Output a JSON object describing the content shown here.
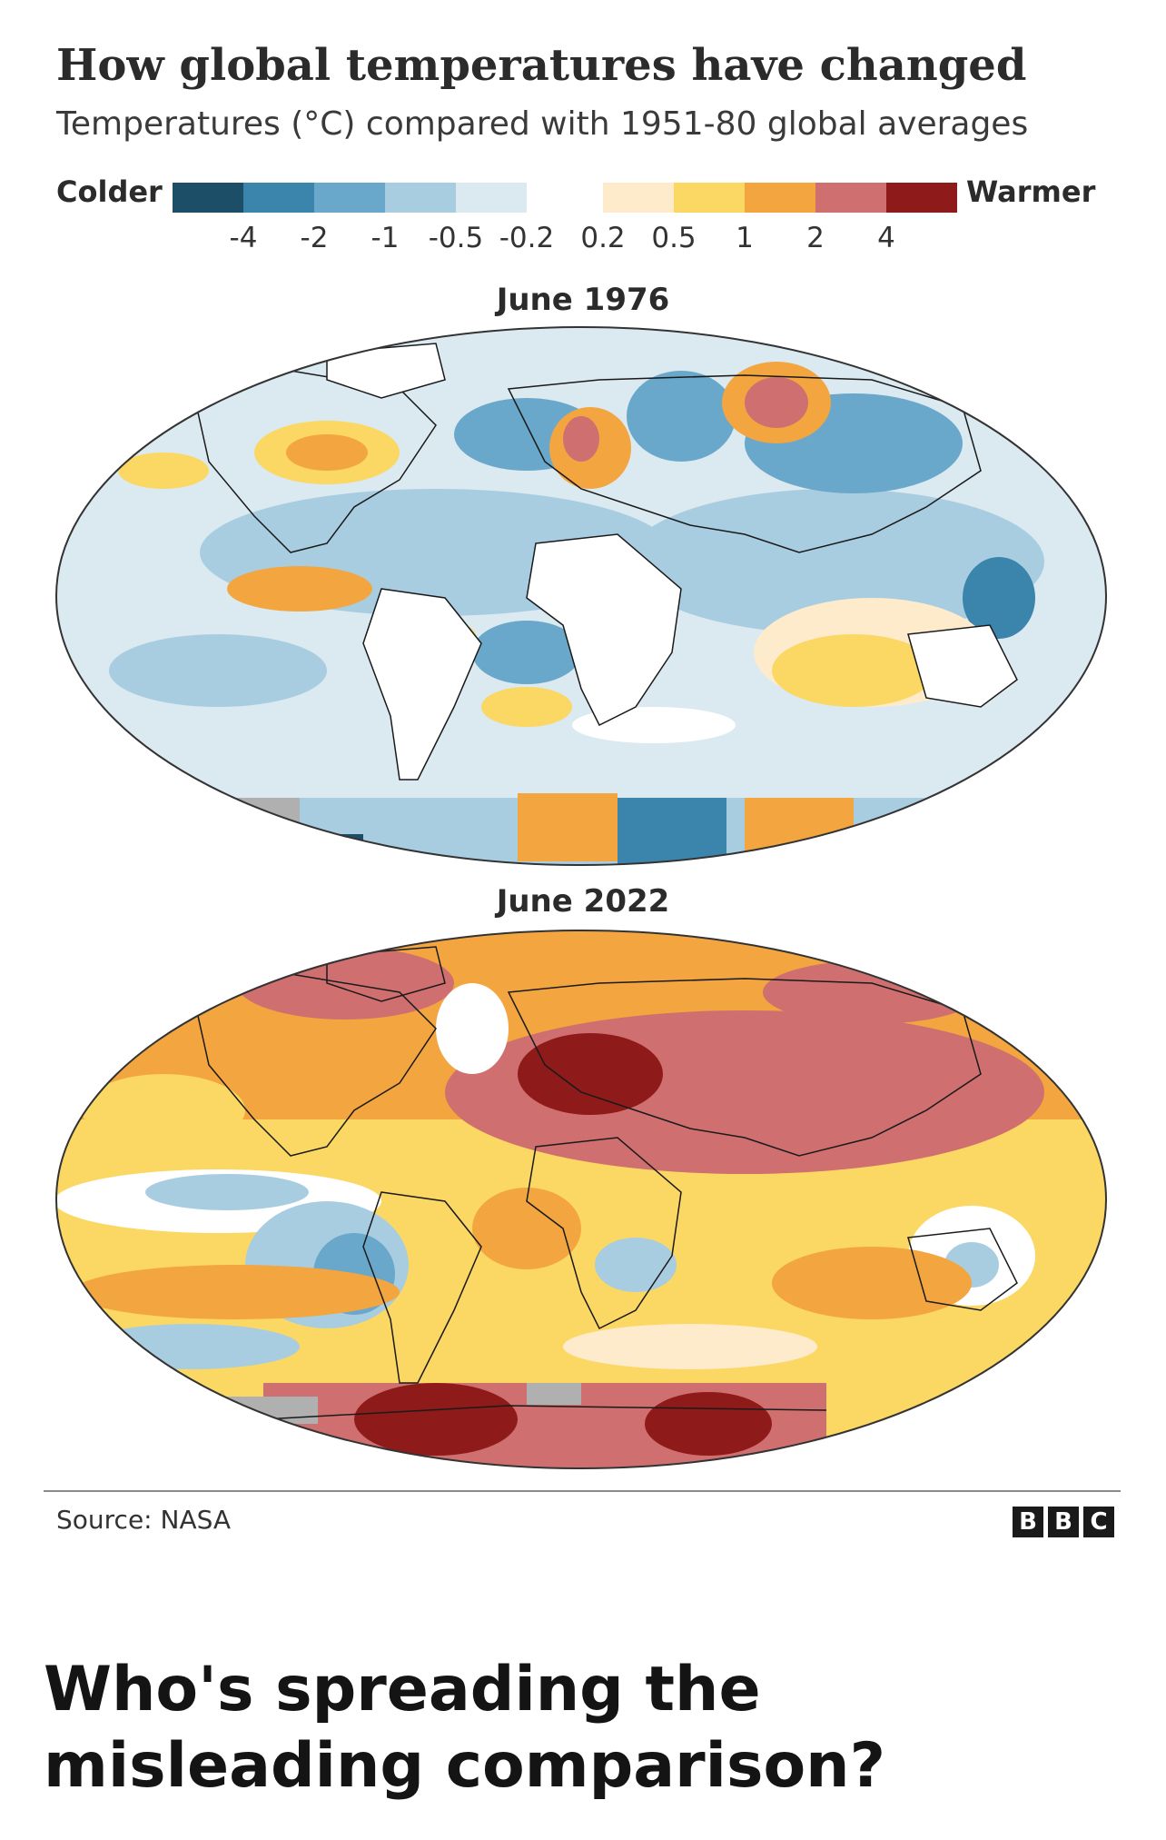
{
  "title": "How global temperatures have changed",
  "subtitle": "Temperatures (°C) compared with 1951-80 global averages",
  "legend": {
    "left_label": "Colder",
    "right_label": "Warmer",
    "cold_colors": [
      "#1d4e68",
      "#3b85ad",
      "#6aa8cb",
      "#a9cde0",
      "#dbe9f1"
    ],
    "warm_colors": [
      "#fdebcc",
      "#fbd763",
      "#f3a540",
      "#d06f6f",
      "#8e1a1a"
    ],
    "ticks": [
      "-4",
      "-2",
      "-1",
      "-0.5",
      "-0.2",
      "0.2",
      "0.5",
      "1",
      "2",
      "4"
    ]
  },
  "maps": [
    {
      "title": "June 1976",
      "tone": "cool-dominant"
    },
    {
      "title": "June 2022",
      "tone": "warm-dominant"
    }
  ],
  "source": "Source: NASA",
  "logo": [
    "B",
    "B",
    "C"
  ],
  "headline": "Who's spreading the misleading comparison?"
}
